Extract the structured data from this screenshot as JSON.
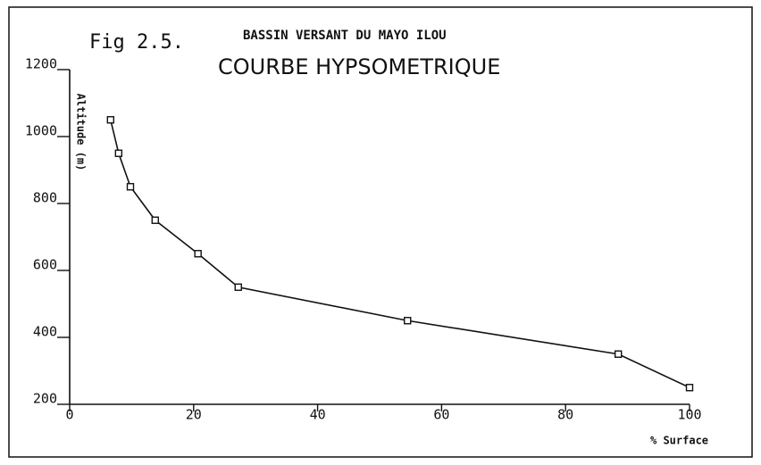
{
  "chart_data": {
    "type": "line",
    "figure_label": "Fig 2.5.",
    "subtitle": "BASSIN VERSANT DU MAYO ILOU",
    "title": "COURBE HYPSOMETRIQUE",
    "y_label": "Altitude (m)",
    "x_label": "% Surface",
    "x": [
      6.6,
      7.9,
      9.8,
      13.8,
      20.7,
      27.2,
      54.5,
      88.5,
      100
    ],
    "series": [
      {
        "name": "Altitude (m)",
        "color": "#111111",
        "values": [
          1050,
          950,
          850,
          750,
          650,
          550,
          450,
          350,
          250
        ]
      }
    ],
    "xlim": [
      0,
      100
    ],
    "xticks": [
      0,
      20,
      40,
      60,
      80,
      100
    ],
    "ylim": [
      200,
      1200
    ],
    "yticks": [
      200,
      400,
      600,
      800,
      1000,
      1200
    ],
    "grid": false,
    "markers": "square"
  }
}
